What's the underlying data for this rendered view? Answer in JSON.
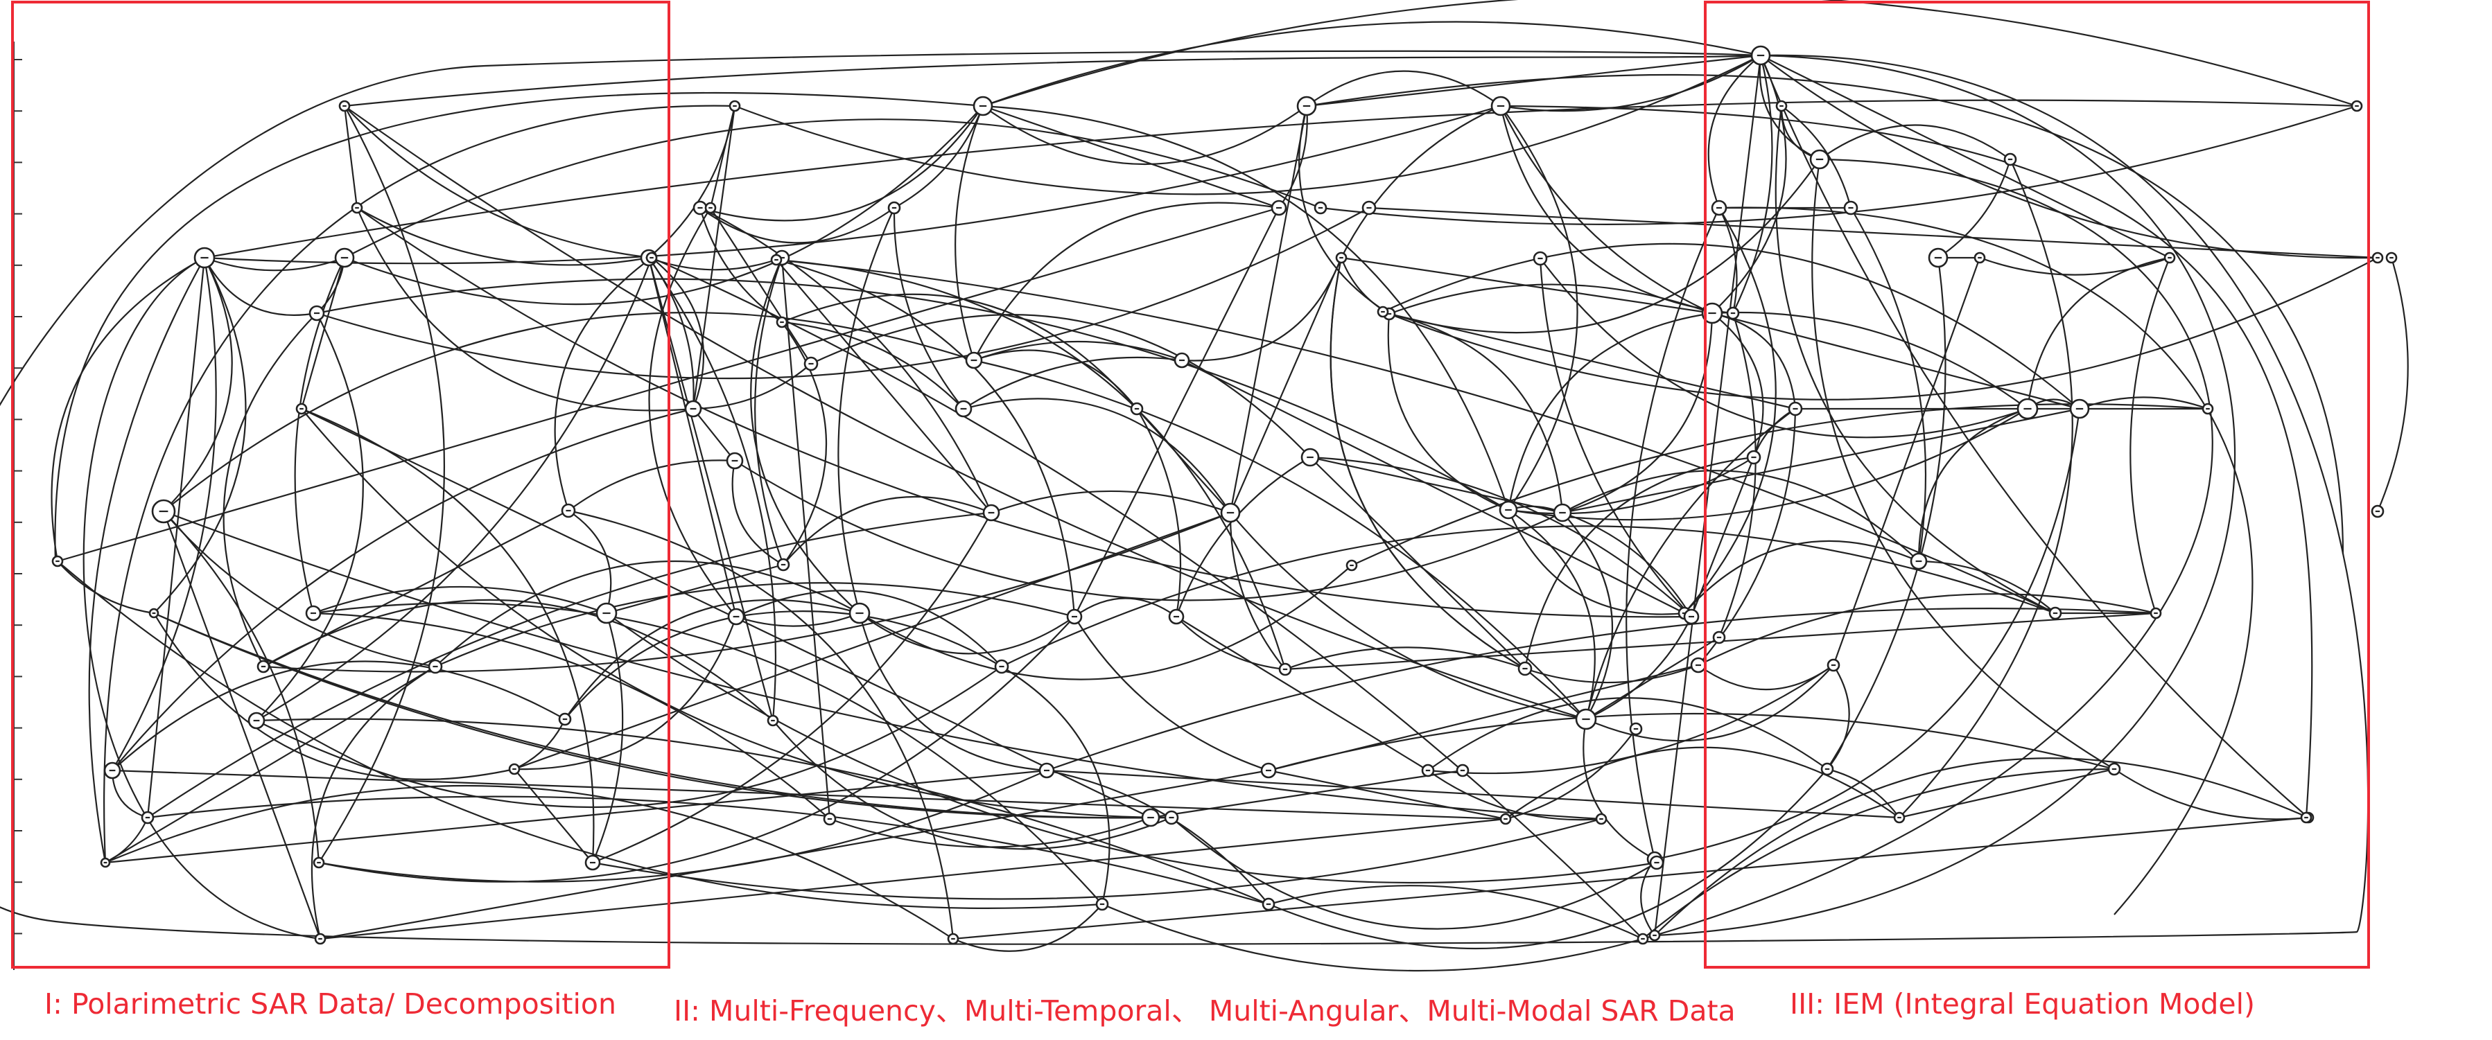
{
  "figure": {
    "clusters": [
      {
        "id": "I",
        "label": "I: Polarimetric SAR Data/ Decomposition"
      },
      {
        "id": "II",
        "label": "II:  Multi-Frequency、Multi-Temporal、 Multi-Angular、Multi-Modal SAR Data"
      },
      {
        "id": "III",
        "label": "III: IEM (Integral Equation Model)"
      }
    ],
    "colors": {
      "highlight": "#ee2a35",
      "edge": "#222222",
      "node_fill": "#ffffff"
    },
    "style": "co-citation keyword network; unlabeled circular nodes connected by curved links"
  }
}
